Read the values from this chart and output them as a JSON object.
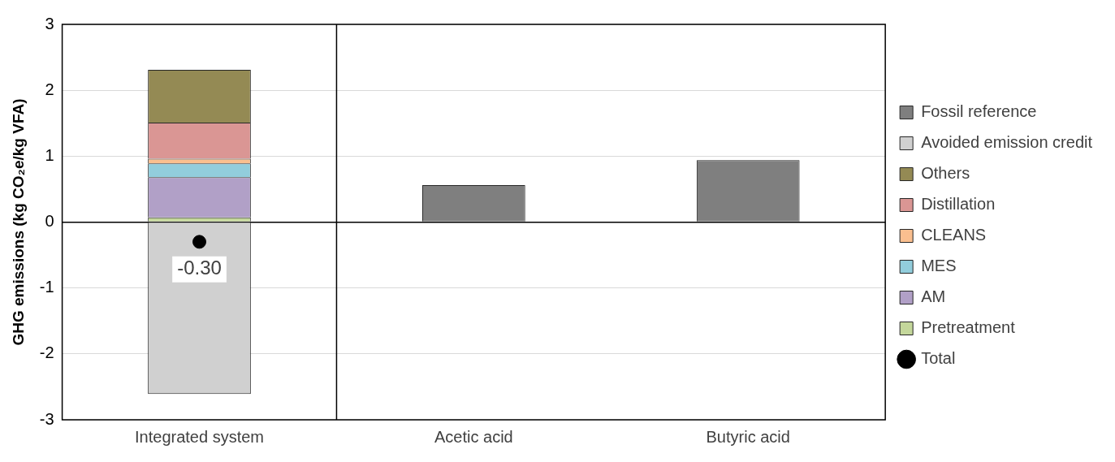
{
  "chart_data": {
    "type": "bar",
    "stacked": true,
    "ylabel": "GHG emissions (kg CO₂e/kg VFA)",
    "categories": [
      "Integrated system",
      "Acetic acid",
      "Butyric acid"
    ],
    "ylim": [
      -3,
      3
    ],
    "yticks": [
      -3,
      -2,
      -1,
      0,
      1,
      2,
      3
    ],
    "grid": "y",
    "legend": "right",
    "series": [
      {
        "name": "Total",
        "type": "scatter",
        "marker": "circle",
        "color": "#000000",
        "x": [
          "Integrated system"
        ],
        "values": [
          -0.3
        ],
        "value_labels": [
          "-0.30"
        ]
      },
      {
        "name": "Pretreatment",
        "color": "#c4d79b",
        "values": [
          0.07,
          null,
          null
        ]
      },
      {
        "name": "AM",
        "color": "#b1a0c7",
        "values": [
          0.61,
          null,
          null
        ]
      },
      {
        "name": "MES",
        "color": "#92cddc",
        "values": [
          0.21,
          null,
          null
        ]
      },
      {
        "name": "CLEANS",
        "color": "#fabf8f",
        "values": [
          0.07,
          null,
          null
        ]
      },
      {
        "name": "Distillation",
        "color": "#da9694",
        "values": [
          0.55,
          null,
          null
        ]
      },
      {
        "name": "Others",
        "color": "#948a54",
        "values": [
          0.8,
          null,
          null
        ]
      },
      {
        "name": "Avoided emission credit",
        "color": "#d0d0d0",
        "values": [
          -2.61,
          null,
          null
        ]
      },
      {
        "name": "Fossil reference",
        "color": "#7f7f7f",
        "values": [
          null,
          0.56,
          0.94
        ]
      }
    ]
  }
}
